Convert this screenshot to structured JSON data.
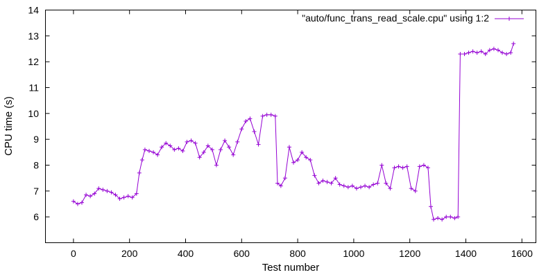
{
  "chart_data": {
    "type": "line",
    "title": "",
    "xlabel": "Test number",
    "ylabel": "CPU time (s)",
    "xlim": [
      -100,
      1650
    ],
    "ylim": [
      5,
      14
    ],
    "xticks": [
      "0",
      "200",
      "400",
      "600",
      "800",
      "1000",
      "1200",
      "1400",
      "1600"
    ],
    "yticks": [
      "6",
      "7",
      "8",
      "9",
      "10",
      "11",
      "12",
      "13",
      "14"
    ],
    "legend": "top-right",
    "grid": false,
    "series": [
      {
        "name": "\"auto/func_trans_read_scale.cpu\" using 1:2",
        "color": "#9400d3",
        "marker": "plus",
        "points": [
          [
            0,
            6.6
          ],
          [
            15,
            6.5
          ],
          [
            30,
            6.55
          ],
          [
            45,
            6.85
          ],
          [
            60,
            6.8
          ],
          [
            75,
            6.9
          ],
          [
            90,
            7.1
          ],
          [
            105,
            7.05
          ],
          [
            120,
            7.0
          ],
          [
            135,
            6.95
          ],
          [
            150,
            6.85
          ],
          [
            165,
            6.7
          ],
          [
            180,
            6.75
          ],
          [
            195,
            6.8
          ],
          [
            210,
            6.75
          ],
          [
            225,
            6.9
          ],
          [
            235,
            7.7
          ],
          [
            245,
            8.2
          ],
          [
            255,
            8.6
          ],
          [
            270,
            8.55
          ],
          [
            285,
            8.5
          ],
          [
            300,
            8.4
          ],
          [
            315,
            8.7
          ],
          [
            330,
            8.85
          ],
          [
            345,
            8.75
          ],
          [
            360,
            8.6
          ],
          [
            375,
            8.65
          ],
          [
            390,
            8.55
          ],
          [
            405,
            8.9
          ],
          [
            420,
            8.95
          ],
          [
            435,
            8.85
          ],
          [
            450,
            8.3
          ],
          [
            465,
            8.5
          ],
          [
            480,
            8.75
          ],
          [
            495,
            8.6
          ],
          [
            510,
            8.0
          ],
          [
            525,
            8.6
          ],
          [
            540,
            8.95
          ],
          [
            555,
            8.7
          ],
          [
            570,
            8.4
          ],
          [
            585,
            8.9
          ],
          [
            600,
            9.4
          ],
          [
            615,
            9.7
          ],
          [
            630,
            9.8
          ],
          [
            645,
            9.3
          ],
          [
            660,
            8.8
          ],
          [
            675,
            9.9
          ],
          [
            690,
            9.95
          ],
          [
            705,
            9.95
          ],
          [
            720,
            9.9
          ],
          [
            728,
            7.3
          ],
          [
            740,
            7.2
          ],
          [
            755,
            7.5
          ],
          [
            770,
            8.7
          ],
          [
            785,
            8.1
          ],
          [
            800,
            8.2
          ],
          [
            815,
            8.5
          ],
          [
            830,
            8.3
          ],
          [
            845,
            8.2
          ],
          [
            860,
            7.6
          ],
          [
            875,
            7.3
          ],
          [
            890,
            7.4
          ],
          [
            905,
            7.35
          ],
          [
            920,
            7.3
          ],
          [
            935,
            7.5
          ],
          [
            950,
            7.25
          ],
          [
            965,
            7.2
          ],
          [
            980,
            7.15
          ],
          [
            995,
            7.2
          ],
          [
            1010,
            7.1
          ],
          [
            1025,
            7.15
          ],
          [
            1040,
            7.2
          ],
          [
            1055,
            7.15
          ],
          [
            1070,
            7.25
          ],
          [
            1085,
            7.3
          ],
          [
            1100,
            8.0
          ],
          [
            1115,
            7.3
          ],
          [
            1130,
            7.1
          ],
          [
            1145,
            7.9
          ],
          [
            1160,
            7.95
          ],
          [
            1175,
            7.9
          ],
          [
            1190,
            7.95
          ],
          [
            1205,
            7.1
          ],
          [
            1220,
            7.0
          ],
          [
            1235,
            7.95
          ],
          [
            1250,
            8.0
          ],
          [
            1265,
            7.9
          ],
          [
            1275,
            6.4
          ],
          [
            1285,
            5.9
          ],
          [
            1300,
            5.95
          ],
          [
            1315,
            5.9
          ],
          [
            1330,
            6.0
          ],
          [
            1345,
            6.0
          ],
          [
            1360,
            5.95
          ],
          [
            1372,
            6.0
          ],
          [
            1380,
            12.3
          ],
          [
            1395,
            12.3
          ],
          [
            1410,
            12.35
          ],
          [
            1425,
            12.4
          ],
          [
            1440,
            12.35
          ],
          [
            1455,
            12.4
          ],
          [
            1470,
            12.3
          ],
          [
            1485,
            12.45
          ],
          [
            1500,
            12.5
          ],
          [
            1515,
            12.45
          ],
          [
            1530,
            12.35
          ],
          [
            1545,
            12.3
          ],
          [
            1560,
            12.35
          ],
          [
            1570,
            12.7
          ]
        ]
      }
    ]
  }
}
